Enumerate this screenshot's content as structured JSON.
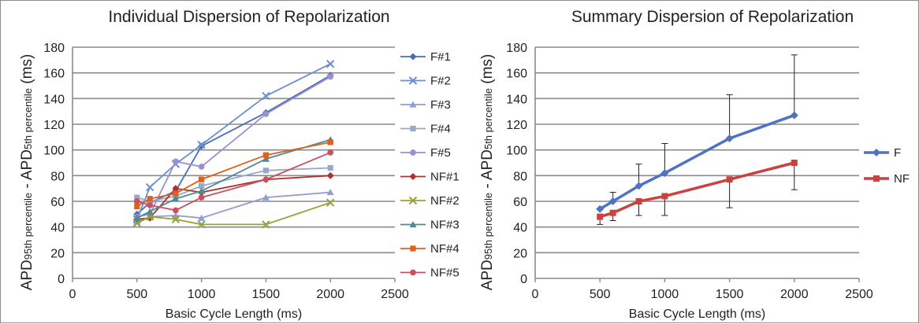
{
  "chart_data": [
    {
      "type": "line",
      "title": "Individual Dispersion of Repolarization",
      "xlabel": "Basic Cycle Length (ms)",
      "ylabel": {
        "main1": "APD",
        "sub1": "95th percentile",
        "sep": " - ",
        "main2": "APD",
        "sub2": "5th percentile",
        "unit": " (ms)"
      },
      "xlim": [
        0,
        2500
      ],
      "ylim": [
        0,
        180
      ],
      "xticks": [
        0,
        500,
        1000,
        1500,
        2000,
        2500
      ],
      "yticks": [
        0,
        20,
        40,
        60,
        80,
        100,
        120,
        140,
        160,
        180
      ],
      "grid": "horizontal",
      "legend_position": "right",
      "series": [
        {
          "name": "F#1",
          "color": "#4a6eb5",
          "marker": "diamond",
          "x": [
            500,
            600,
            800,
            1000,
            1500,
            2000
          ],
          "y": [
            50,
            59,
            68,
            103,
            129,
            158
          ]
        },
        {
          "name": "F#2",
          "color": "#6c8fd0",
          "marker": "x",
          "x": [
            500,
            600,
            800,
            1000,
            1500,
            2000
          ],
          "y": [
            46,
            71,
            89,
            104,
            142,
            167
          ]
        },
        {
          "name": "F#3",
          "color": "#8e9fd0",
          "marker": "triangle",
          "x": [
            500,
            600,
            800,
            1000,
            1500,
            2000
          ],
          "y": [
            44,
            48,
            49,
            47,
            63,
            67
          ]
        },
        {
          "name": "F#4",
          "color": "#98a8c8",
          "marker": "square",
          "x": [
            500,
            600,
            800,
            1000,
            1500,
            2000
          ],
          "y": [
            63,
            60,
            64,
            72,
            84,
            86
          ]
        },
        {
          "name": "F#5",
          "color": "#9a8fd0",
          "marker": "circle",
          "x": [
            500,
            600,
            800,
            1000,
            1500,
            2000
          ],
          "y": [
            48,
            50,
            91,
            87,
            128,
            157
          ]
        },
        {
          "name": "NF#1",
          "color": "#b03030",
          "marker": "diamond",
          "x": [
            500,
            600,
            800,
            1000,
            1500,
            2000
          ],
          "y": [
            46,
            47,
            70,
            67,
            77,
            80
          ]
        },
        {
          "name": "NF#2",
          "color": "#9aa03a",
          "marker": "x",
          "x": [
            500,
            600,
            800,
            1000,
            1500,
            2000
          ],
          "y": [
            43,
            48,
            46,
            42,
            42,
            59
          ]
        },
        {
          "name": "NF#3",
          "color": "#4d8a94",
          "marker": "triangle",
          "x": [
            500,
            600,
            800,
            1000,
            1500,
            2000
          ],
          "y": [
            47,
            52,
            62,
            68,
            93,
            108
          ]
        },
        {
          "name": "NF#4",
          "color": "#e0601c",
          "marker": "square",
          "x": [
            500,
            600,
            800,
            1000,
            1500,
            2000
          ],
          "y": [
            56,
            62,
            66,
            77,
            96,
            106
          ]
        },
        {
          "name": "NF#5",
          "color": "#c85060",
          "marker": "circle",
          "x": [
            500,
            600,
            800,
            1000,
            1500,
            2000
          ],
          "y": [
            60,
            57,
            53,
            63,
            77,
            98
          ]
        }
      ]
    },
    {
      "type": "line",
      "title": "Summary Dispersion of Repolarization",
      "xlabel": "Basic Cycle Length (ms)",
      "ylabel": {
        "main1": "APD",
        "sub1": "95th percentile",
        "sep": " - ",
        "main2": "APD",
        "sub2": "5th percentile",
        "unit": " (ms)"
      },
      "xlim": [
        0,
        2500
      ],
      "ylim": [
        0,
        180
      ],
      "xticks": [
        0,
        500,
        1000,
        1500,
        2000,
        2500
      ],
      "yticks": [
        0,
        20,
        40,
        60,
        80,
        100,
        120,
        140,
        160,
        180
      ],
      "grid": "horizontal",
      "legend_position": "right",
      "series": [
        {
          "name": "F",
          "color": "#4e73c0",
          "marker": "diamond",
          "x": [
            500,
            600,
            800,
            1000,
            1500,
            2000
          ],
          "y": [
            54,
            60,
            72,
            82,
            109,
            127
          ],
          "error_plus": [
            0,
            7,
            17,
            23,
            34,
            47
          ]
        },
        {
          "name": "NF",
          "color": "#cc4040",
          "marker": "square",
          "x": [
            500,
            600,
            800,
            1000,
            1500,
            2000
          ],
          "y": [
            48,
            51,
            60,
            64,
            77,
            90
          ],
          "error_minus": [
            6,
            6,
            11,
            15,
            22,
            21
          ]
        }
      ]
    }
  ]
}
